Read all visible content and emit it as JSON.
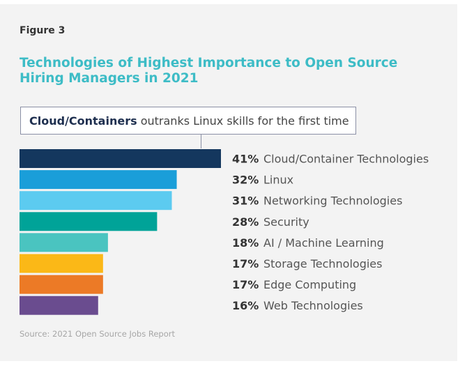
{
  "figure_label": "Figure 3",
  "title": "Technologies of Highest Importance to Open Source Hiring Managers in 2021",
  "callout": {
    "bold": "Cloud/Containers",
    "rest": " outranks Linux skills for the first time"
  },
  "source": "Source: 2021 Open Source Jobs Report",
  "colors": {
    "title": "#3dbcc6",
    "bars": [
      "#14375e",
      "#1a9ed9",
      "#5ccbf0",
      "#00a398",
      "#4ac4c0",
      "#fbb817",
      "#ec7a26",
      "#6a4c8f"
    ]
  },
  "chart_data": {
    "type": "bar",
    "orientation": "horizontal",
    "categories": [
      "Cloud/Container Technologies",
      "Linux",
      "Networking Technologies",
      "Security",
      "AI / Machine Learning",
      "Storage Technologies",
      "Edge Computing",
      "Web Technologies"
    ],
    "values": [
      41,
      32,
      31,
      28,
      18,
      17,
      17,
      16
    ],
    "value_labels": [
      "41%",
      "32%",
      "31%",
      "28%",
      "18%",
      "17%",
      "17%",
      "16%"
    ],
    "unit": "%",
    "title": "Technologies of Highest Importance to Open Source Hiring Managers in 2021",
    "xlabel": "",
    "ylabel": "",
    "grid": false
  }
}
